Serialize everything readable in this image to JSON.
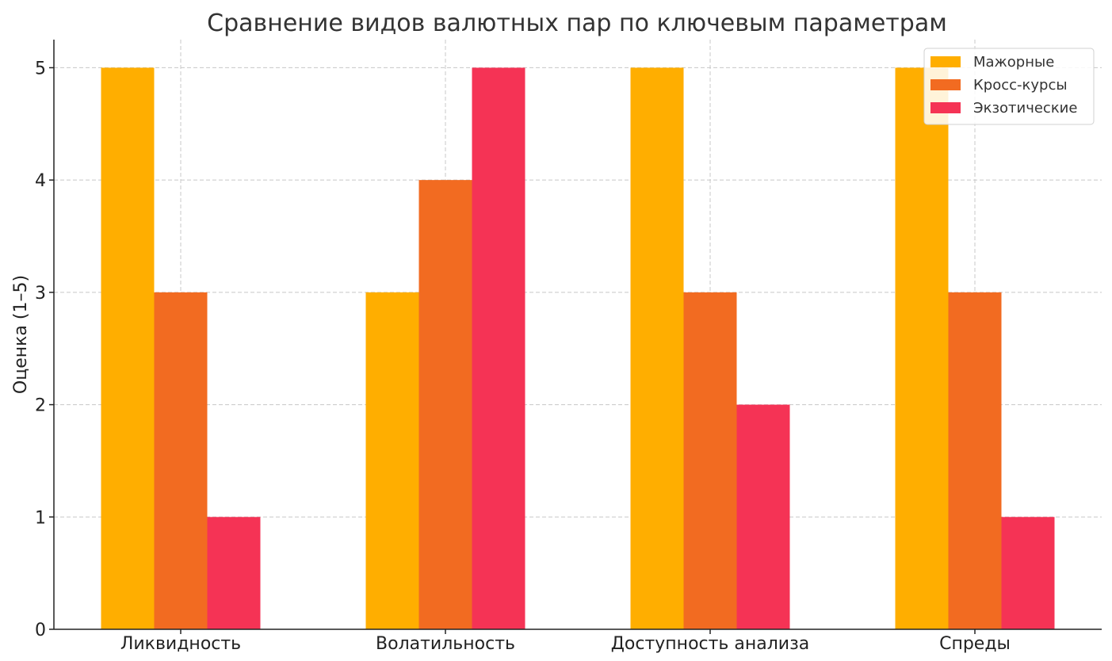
{
  "chart_data": {
    "type": "bar",
    "title": "Сравнение видов валютных пар по ключевым параметрам",
    "xlabel": "",
    "ylabel": "Оценка (1–5)",
    "categories": [
      "Ликвидность",
      "Волатильность",
      "Доступность анализа",
      "Спреды"
    ],
    "series": [
      {
        "name": "Мажорные",
        "color": "#FFAE00",
        "values": [
          5,
          3,
          5,
          5
        ]
      },
      {
        "name": "Кросс-курсы",
        "color": "#F26B21",
        "values": [
          3,
          4,
          3,
          3
        ]
      },
      {
        "name": "Экзотические",
        "color": "#F53355",
        "values": [
          1,
          5,
          2,
          1
        ]
      }
    ],
    "ylim": [
      0,
      5.25
    ],
    "yticks": [
      0,
      1,
      2,
      3,
      4,
      5
    ],
    "grid": true,
    "legend": "top-right"
  }
}
